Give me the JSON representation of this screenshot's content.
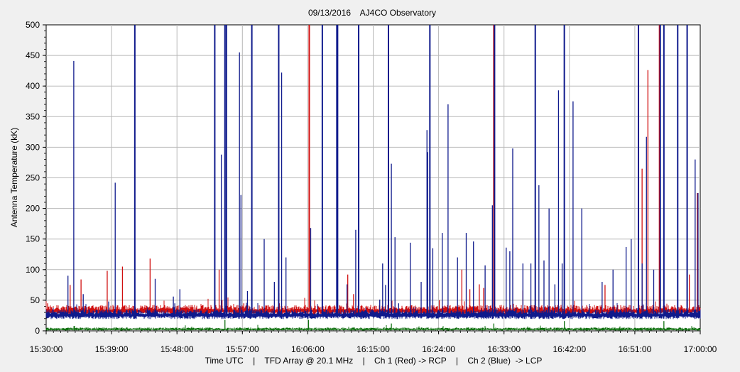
{
  "chart_data": {
    "type": "line",
    "title": "09/13/2016    AJ4CO Observatory",
    "ylabel": "Antenna Temperature (kK)",
    "xlabel": "Time UTC    |    TFD Array @ 20.1 MHz    |    Ch 1 (Red) -> RCP    |    Ch 2 (Blue)  -> LCP",
    "x_range_minutes": [
      930,
      1020
    ],
    "ylim": [
      0,
      500
    ],
    "yticks": [
      0,
      50,
      100,
      150,
      200,
      250,
      300,
      350,
      400,
      450,
      500
    ],
    "xticks": [
      {
        "minute": 930,
        "label": "15:30:00"
      },
      {
        "minute": 939,
        "label": "15:39:00"
      },
      {
        "minute": 948,
        "label": "15:48:00"
      },
      {
        "minute": 957,
        "label": "15:57:00"
      },
      {
        "minute": 966,
        "label": "16:06:00"
      },
      {
        "minute": 975,
        "label": "16:15:00"
      },
      {
        "minute": 984,
        "label": "16:24:00"
      },
      {
        "minute": 993,
        "label": "16:33:00"
      },
      {
        "minute": 1002,
        "label": "16:42:00"
      },
      {
        "minute": 1011,
        "label": "16:51:00"
      },
      {
        "minute": 1020,
        "label": "17:00:00"
      }
    ],
    "grid": true,
    "series": [
      {
        "channel": "Ch 1 (Red)",
        "color": "#d01010",
        "baseline": 31,
        "spikes": [
          [
            930.2,
            45
          ],
          [
            932.3,
            40
          ],
          [
            933.3,
            75
          ],
          [
            934.8,
            84
          ],
          [
            938.4,
            98
          ],
          [
            940.5,
            105
          ],
          [
            944.3,
            118
          ],
          [
            953.8,
            100
          ],
          [
            954.2,
            50
          ],
          [
            957.2,
            45
          ],
          [
            962.1,
            45
          ],
          [
            966.2,
            500
          ],
          [
            971.5,
            92
          ],
          [
            972.3,
            60
          ],
          [
            984.1,
            50
          ],
          [
            987.2,
            100
          ],
          [
            988.3,
            68
          ],
          [
            989.6,
            76
          ],
          [
            990.2,
            70
          ],
          [
            991.6,
            500
          ],
          [
            995.6,
            66
          ],
          [
            1006.9,
            75
          ],
          [
            1012.0,
            265
          ],
          [
            1012.8,
            426
          ],
          [
            1014.4,
            500
          ],
          [
            1018.5,
            92
          ],
          [
            1019.6,
            225
          ]
        ]
      },
      {
        "channel": "Ch 2 (Blue)",
        "color": "#0f1a8c",
        "baseline": 24,
        "spikes": [
          [
            933.0,
            90
          ],
          [
            933.8,
            441
          ],
          [
            935.1,
            60
          ],
          [
            938.6,
            48
          ],
          [
            939.5,
            242
          ],
          [
            942.2,
            500
          ],
          [
            945.0,
            85
          ],
          [
            947.5,
            56
          ],
          [
            947.7,
            45
          ],
          [
            948.4,
            68
          ],
          [
            953.2,
            500
          ],
          [
            954.1,
            288
          ],
          [
            954.6,
            500
          ],
          [
            954.8,
            500
          ],
          [
            956.6,
            455
          ],
          [
            956.8,
            222
          ],
          [
            957.7,
            65
          ],
          [
            958.3,
            500
          ],
          [
            960.0,
            150
          ],
          [
            961.4,
            80
          ],
          [
            962.0,
            500
          ],
          [
            962.4,
            422
          ],
          [
            963.0,
            120
          ],
          [
            966.4,
            168
          ],
          [
            968.0,
            500
          ],
          [
            970.0,
            500
          ],
          [
            970.1,
            500
          ],
          [
            971.4,
            76
          ],
          [
            972.6,
            165
          ],
          [
            973.0,
            500
          ],
          [
            975.9,
            51
          ],
          [
            976.3,
            110
          ],
          [
            976.7,
            75
          ],
          [
            977.1,
            500
          ],
          [
            977.5,
            273
          ],
          [
            978.0,
            153
          ],
          [
            978.5,
            45
          ],
          [
            980.1,
            144
          ],
          [
            981.6,
            80
          ],
          [
            982.4,
            328
          ],
          [
            982.5,
            292
          ],
          [
            982.8,
            500
          ],
          [
            983.2,
            135
          ],
          [
            984.5,
            160
          ],
          [
            985.3,
            370
          ],
          [
            986.6,
            120
          ],
          [
            987.8,
            160
          ],
          [
            988.8,
            146
          ],
          [
            990.4,
            107
          ],
          [
            991.4,
            205
          ],
          [
            991.7,
            500
          ],
          [
            993.3,
            136
          ],
          [
            993.8,
            130
          ],
          [
            994.2,
            298
          ],
          [
            995.6,
            110
          ],
          [
            996.7,
            110
          ],
          [
            997.3,
            500
          ],
          [
            997.8,
            238
          ],
          [
            998.5,
            115
          ],
          [
            999.2,
            200
          ],
          [
            1000.0,
            76
          ],
          [
            1000.5,
            393
          ],
          [
            1001.0,
            110
          ],
          [
            1001.3,
            500
          ],
          [
            1002.5,
            375
          ],
          [
            1003.7,
            200
          ],
          [
            1006.5,
            80
          ],
          [
            1008.0,
            100
          ],
          [
            1009.8,
            137
          ],
          [
            1010.5,
            150
          ],
          [
            1011.5,
            500
          ],
          [
            1012.0,
            110
          ],
          [
            1012.6,
            317
          ],
          [
            1013.6,
            100
          ],
          [
            1014.5,
            500
          ],
          [
            1015.0,
            500
          ],
          [
            1016.9,
            500
          ],
          [
            1018.2,
            500
          ],
          [
            1019.3,
            280
          ],
          [
            1019.7,
            225
          ]
        ]
      },
      {
        "channel": "Ch 3 (Green)",
        "color": "#107010",
        "baseline": 2,
        "spikes": [
          [
            933.9,
            8
          ],
          [
            954.6,
            18
          ],
          [
            966.1,
            18
          ],
          [
            977.5,
            12
          ],
          [
            991.6,
            12
          ],
          [
            1001.3,
            16
          ],
          [
            1015.0,
            16
          ]
        ]
      }
    ]
  }
}
